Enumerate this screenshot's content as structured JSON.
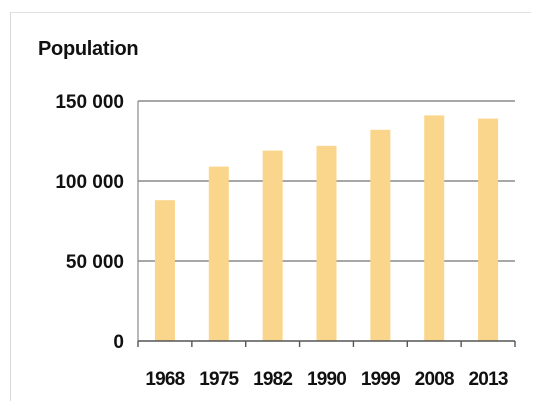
{
  "chart_data": {
    "type": "bar",
    "title": "Population",
    "xlabel": "",
    "ylabel": "",
    "categories": [
      "1968",
      "1975",
      "1982",
      "1990",
      "1999",
      "2008",
      "2013"
    ],
    "values": [
      88000,
      109000,
      119000,
      122000,
      132000,
      141000,
      139000
    ],
    "ylim": [
      0,
      150000
    ],
    "yticks": [
      0,
      50000,
      100000,
      150000
    ],
    "ytick_labels": [
      "0",
      "50 000",
      "100 000",
      "150 000"
    ],
    "grid": true,
    "legend": "none",
    "bar_color": "#FAD58C",
    "grid_color": "#8a8a8a"
  }
}
